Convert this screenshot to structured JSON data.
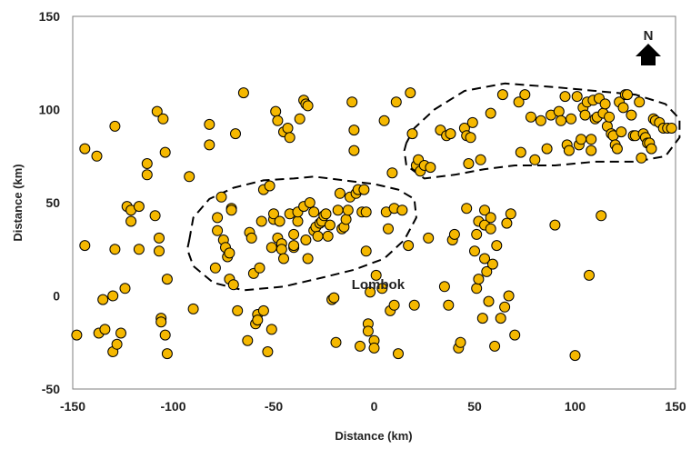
{
  "chart_data": {
    "type": "scatter",
    "title": "",
    "xlabel": "Distance (km)",
    "ylabel": "Distance (km)",
    "xlim": [
      -150,
      150
    ],
    "ylim": [
      -50,
      150
    ],
    "xticks": [
      "-150",
      "-100",
      "-50",
      "0",
      "50",
      "100",
      "150"
    ],
    "yticks": [
      "-50",
      "0",
      "50",
      "100",
      "150"
    ],
    "xtick_values": [
      -150,
      -100,
      -50,
      0,
      50,
      100,
      150
    ],
    "ytick_values": [
      -50,
      0,
      50,
      100,
      150
    ],
    "grid": false,
    "legend": "none",
    "marker_color": "#f5b800",
    "marker_edge_color": "#000000",
    "annotations": [
      {
        "text": "Lombok",
        "x": 2,
        "y": 6
      },
      {
        "text": "N",
        "kind": "north-arrow",
        "x": 135,
        "y": 133
      }
    ],
    "regions": [
      {
        "name": "",
        "style": "dashed",
        "outline": [
          [
            -92,
            30
          ],
          [
            -90,
            42
          ],
          [
            -82,
            52
          ],
          [
            -70,
            58
          ],
          [
            -55,
            62
          ],
          [
            -40,
            63
          ],
          [
            -30,
            64
          ],
          [
            -15,
            62
          ],
          [
            0,
            60
          ],
          [
            12,
            57
          ],
          [
            20,
            52
          ],
          [
            21,
            42
          ],
          [
            15,
            30
          ],
          [
            5,
            20
          ],
          [
            -10,
            14
          ],
          [
            -25,
            10
          ],
          [
            -45,
            5
          ],
          [
            -65,
            3
          ],
          [
            -80,
            7
          ],
          [
            -90,
            16
          ],
          [
            -93,
            25
          ],
          [
            -92,
            30
          ]
        ]
      },
      {
        "name": "",
        "style": "dashed",
        "outline": [
          [
            16,
            82
          ],
          [
            20,
            90
          ],
          [
            30,
            100
          ],
          [
            45,
            110
          ],
          [
            65,
            114
          ],
          [
            90,
            112
          ],
          [
            110,
            110
          ],
          [
            130,
            108
          ],
          [
            145,
            103
          ],
          [
            152,
            95
          ],
          [
            152,
            85
          ],
          [
            145,
            75
          ],
          [
            130,
            72
          ],
          [
            110,
            72
          ],
          [
            90,
            70
          ],
          [
            70,
            70
          ],
          [
            55,
            68
          ],
          [
            40,
            65
          ],
          [
            25,
            63
          ],
          [
            16,
            70
          ],
          [
            15,
            78
          ],
          [
            16,
            82
          ]
        ]
      }
    ],
    "points": [
      [
        -148,
        -21
      ],
      [
        -144,
        27
      ],
      [
        -144,
        79
      ],
      [
        -138,
        75
      ],
      [
        -135,
        -2
      ],
      [
        -137,
        -20
      ],
      [
        -134,
        -18
      ],
      [
        -130,
        -30
      ],
      [
        -128,
        -26
      ],
      [
        -126,
        -20
      ],
      [
        -129,
        25
      ],
      [
        -129,
        91
      ],
      [
        -130,
        0
      ],
      [
        -124,
        4
      ],
      [
        -123,
        48
      ],
      [
        -121,
        46
      ],
      [
        -121,
        40
      ],
      [
        -117,
        48
      ],
      [
        -117,
        25
      ],
      [
        -113,
        71
      ],
      [
        -113,
        65
      ],
      [
        -109,
        43
      ],
      [
        -108,
        99
      ],
      [
        -107,
        31
      ],
      [
        -107,
        24
      ],
      [
        -106,
        -12
      ],
      [
        -106,
        -14
      ],
      [
        -105,
        95
      ],
      [
        -104,
        -21
      ],
      [
        -104,
        77
      ],
      [
        -103,
        -31
      ],
      [
        -103,
        9
      ],
      [
        -92,
        64
      ],
      [
        -90,
        -7
      ],
      [
        -82,
        92
      ],
      [
        -82,
        81
      ],
      [
        -79,
        15
      ],
      [
        -78,
        35
      ],
      [
        -78,
        42
      ],
      [
        -76,
        53
      ],
      [
        -75,
        30
      ],
      [
        -74,
        26
      ],
      [
        -73,
        21
      ],
      [
        -72,
        23
      ],
      [
        -71,
        47
      ],
      [
        -71,
        46
      ],
      [
        -72,
        9
      ],
      [
        -70,
        6
      ],
      [
        -69,
        87
      ],
      [
        -68,
        -8
      ],
      [
        -65,
        109
      ],
      [
        -63,
        -24
      ],
      [
        -62,
        34
      ],
      [
        -61,
        31
      ],
      [
        -60,
        12
      ],
      [
        -59,
        -15
      ],
      [
        -58,
        -10
      ],
      [
        -58,
        -13
      ],
      [
        -57,
        15
      ],
      [
        -56,
        40
      ],
      [
        -55,
        -8
      ],
      [
        -55,
        57
      ],
      [
        -52,
        59
      ],
      [
        -53,
        -30
      ],
      [
        -51,
        -18
      ],
      [
        -51,
        26
      ],
      [
        -50,
        41
      ],
      [
        -50,
        44
      ],
      [
        -49,
        99
      ],
      [
        -48,
        94
      ],
      [
        -48,
        31
      ],
      [
        -47,
        40
      ],
      [
        -46,
        28
      ],
      [
        -46,
        25
      ],
      [
        -45,
        20
      ],
      [
        -45,
        88
      ],
      [
        -43,
        90
      ],
      [
        -42,
        85
      ],
      [
        -42,
        44
      ],
      [
        -40,
        26
      ],
      [
        -40,
        33
      ],
      [
        -40,
        27
      ],
      [
        -38,
        40
      ],
      [
        -38,
        45
      ],
      [
        -37,
        95
      ],
      [
        -35,
        105
      ],
      [
        -35,
        48
      ],
      [
        -34,
        103
      ],
      [
        -33,
        102
      ],
      [
        -34,
        30
      ],
      [
        -33,
        20
      ],
      [
        -32,
        50
      ],
      [
        -30,
        45
      ],
      [
        -30,
        35
      ],
      [
        -29,
        37
      ],
      [
        -28,
        32
      ],
      [
        -27,
        39
      ],
      [
        -26,
        40
      ],
      [
        -25,
        43
      ],
      [
        -24,
        44
      ],
      [
        -23,
        32
      ],
      [
        -22,
        38
      ],
      [
        -21,
        -2
      ],
      [
        -20,
        -1
      ],
      [
        -19,
        -25
      ],
      [
        -18,
        46
      ],
      [
        -17,
        55
      ],
      [
        -16,
        36
      ],
      [
        -15,
        37
      ],
      [
        -14,
        41
      ],
      [
        -13,
        46
      ],
      [
        -12,
        53
      ],
      [
        -11,
        104
      ],
      [
        -10,
        89
      ],
      [
        -10,
        78
      ],
      [
        -9,
        55
      ],
      [
        -8,
        57
      ],
      [
        -7,
        -27
      ],
      [
        -6,
        45
      ],
      [
        -5,
        57
      ],
      [
        -4,
        45
      ],
      [
        -4,
        24
      ],
      [
        -3,
        -15
      ],
      [
        -3,
        -19
      ],
      [
        -2,
        2
      ],
      [
        0,
        -24
      ],
      [
        0,
        -28
      ],
      [
        1,
        11
      ],
      [
        4,
        4
      ],
      [
        5,
        94
      ],
      [
        6,
        45
      ],
      [
        7,
        36
      ],
      [
        8,
        -8
      ],
      [
        9,
        66
      ],
      [
        10,
        47
      ],
      [
        10,
        -5
      ],
      [
        11,
        104
      ],
      [
        12,
        -31
      ],
      [
        14,
        46
      ],
      [
        17,
        27
      ],
      [
        18,
        109
      ],
      [
        19,
        87
      ],
      [
        20,
        -5
      ],
      [
        21,
        70
      ],
      [
        22,
        73
      ],
      [
        23,
        67
      ],
      [
        25,
        70
      ],
      [
        27,
        31
      ],
      [
        28,
        69
      ],
      [
        33,
        89
      ],
      [
        35,
        5
      ],
      [
        36,
        86
      ],
      [
        37,
        -5
      ],
      [
        38,
        87
      ],
      [
        39,
        30
      ],
      [
        40,
        33
      ],
      [
        42,
        -28
      ],
      [
        43,
        -25
      ],
      [
        45,
        90
      ],
      [
        46,
        86
      ],
      [
        46,
        47
      ],
      [
        47,
        71
      ],
      [
        48,
        85
      ],
      [
        49,
        93
      ],
      [
        50,
        24
      ],
      [
        51,
        33
      ],
      [
        51,
        4
      ],
      [
        52,
        9
      ],
      [
        52,
        40
      ],
      [
        53,
        73
      ],
      [
        54,
        -12
      ],
      [
        55,
        46
      ],
      [
        55,
        38
      ],
      [
        55,
        20
      ],
      [
        56,
        13
      ],
      [
        57,
        -3
      ],
      [
        58,
        36
      ],
      [
        58,
        42
      ],
      [
        58,
        98
      ],
      [
        59,
        17
      ],
      [
        60,
        -27
      ],
      [
        61,
        27
      ],
      [
        63,
        -12
      ],
      [
        64,
        108
      ],
      [
        65,
        -6
      ],
      [
        66,
        39
      ],
      [
        67,
        0
      ],
      [
        68,
        44
      ],
      [
        70,
        -21
      ],
      [
        72,
        104
      ],
      [
        73,
        77
      ],
      [
        75,
        108
      ],
      [
        78,
        96
      ],
      [
        80,
        73
      ],
      [
        83,
        94
      ],
      [
        86,
        79
      ],
      [
        88,
        97
      ],
      [
        90,
        38
      ],
      [
        92,
        99
      ],
      [
        93,
        94
      ],
      [
        95,
        107
      ],
      [
        96,
        81
      ],
      [
        97,
        78
      ],
      [
        98,
        95
      ],
      [
        100,
        -32
      ],
      [
        101,
        107
      ],
      [
        102,
        81
      ],
      [
        103,
        84
      ],
      [
        104,
        101
      ],
      [
        105,
        97
      ],
      [
        106,
        104
      ],
      [
        107,
        11
      ],
      [
        108,
        84
      ],
      [
        108,
        78
      ],
      [
        109,
        105
      ],
      [
        110,
        95
      ],
      [
        111,
        96
      ],
      [
        112,
        106
      ],
      [
        113,
        43
      ],
      [
        114,
        98
      ],
      [
        115,
        103
      ],
      [
        116,
        91
      ],
      [
        117,
        96
      ],
      [
        118,
        87
      ],
      [
        119,
        86
      ],
      [
        120,
        81
      ],
      [
        121,
        79
      ],
      [
        122,
        104
      ],
      [
        123,
        88
      ],
      [
        124,
        101
      ],
      [
        125,
        108
      ],
      [
        126,
        108
      ],
      [
        128,
        97
      ],
      [
        129,
        86
      ],
      [
        130,
        86
      ],
      [
        132,
        104
      ],
      [
        133,
        74
      ],
      [
        134,
        87
      ],
      [
        135,
        85
      ],
      [
        136,
        82
      ],
      [
        137,
        82
      ],
      [
        138,
        79
      ],
      [
        139,
        95
      ],
      [
        140,
        94
      ],
      [
        142,
        93
      ],
      [
        144,
        90
      ],
      [
        146,
        90
      ],
      [
        148,
        90
      ]
    ]
  }
}
